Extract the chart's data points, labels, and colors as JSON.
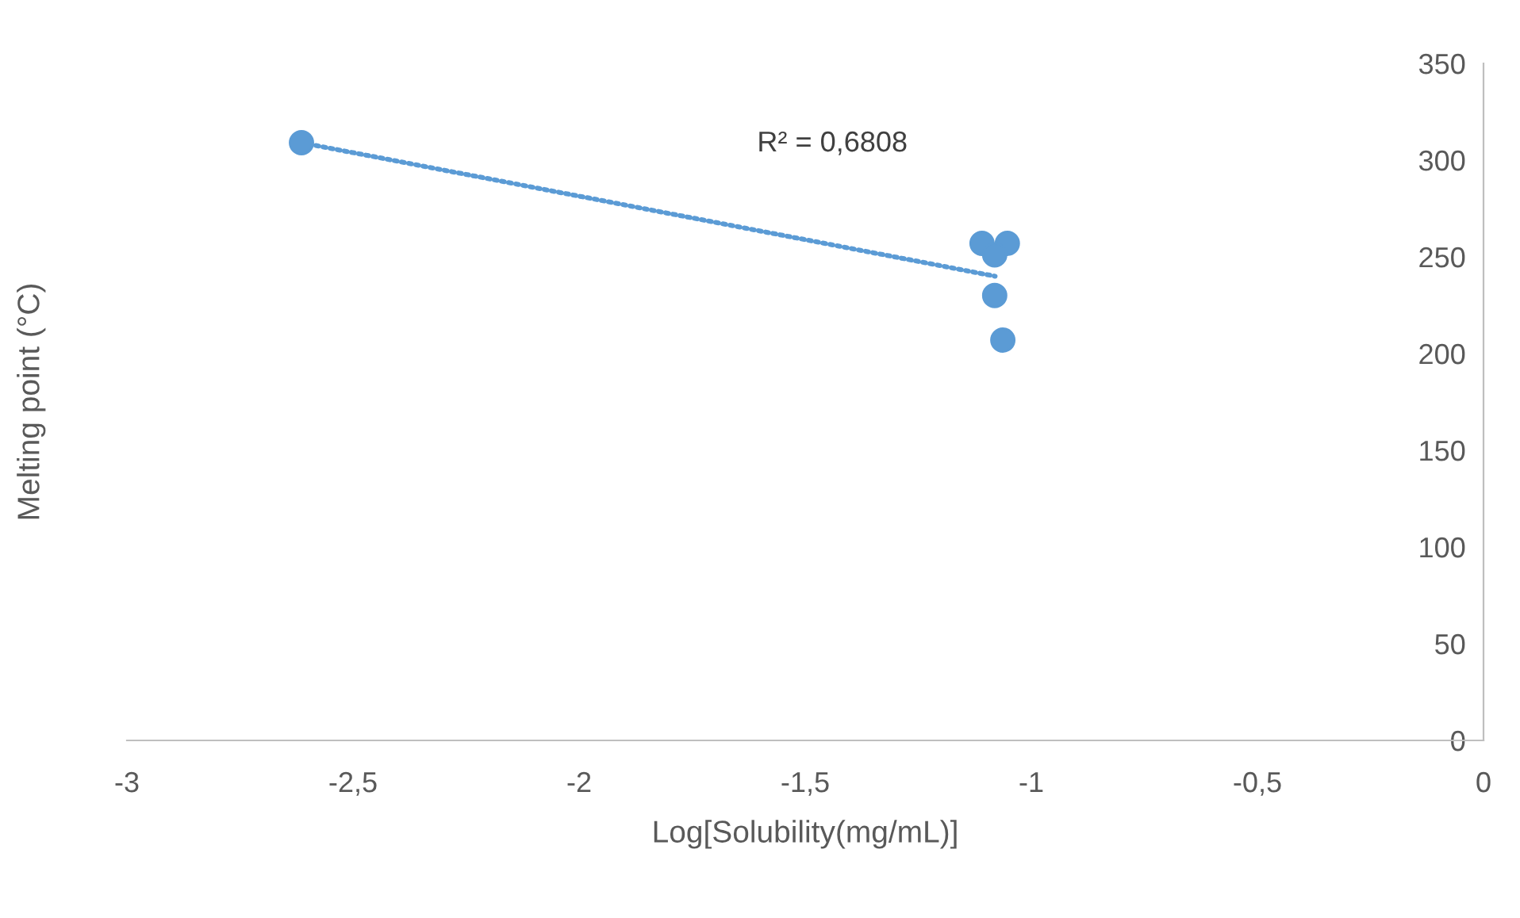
{
  "chart_data": {
    "type": "scatter",
    "xlabel": "Log[Solubility(mg/mL)]",
    "ylabel": "Melting point (°C)",
    "annotations": [
      "R² = 0,6808"
    ],
    "series": [
      {
        "x": [
          -2.614,
          -1.109,
          -1.053,
          -1.081,
          -1.081,
          -1.063
        ],
        "values": [
          309,
          257,
          257,
          251,
          230,
          207
        ],
        "color": "#5b9bd5",
        "marker": "circle"
      },
      {
        "type": "line",
        "x": [
          -2.614,
          -1.08
        ],
        "values": [
          309,
          240
        ],
        "color": "#5b9bd5",
        "line_style": "dotted"
      }
    ],
    "xlim": [
      -3,
      0
    ],
    "ylim": [
      0,
      350
    ],
    "xticks": [
      -3,
      {
        "value": -2.5,
        "label": "-2,5"
      },
      -2,
      {
        "value": -1.5,
        "label": "-1,5"
      },
      -1,
      {
        "value": -0.5,
        "label": "-0,5"
      },
      0
    ],
    "yticks": [
      0,
      50,
      100,
      150,
      200,
      250,
      300,
      350
    ],
    "grid": false,
    "legend": false
  }
}
